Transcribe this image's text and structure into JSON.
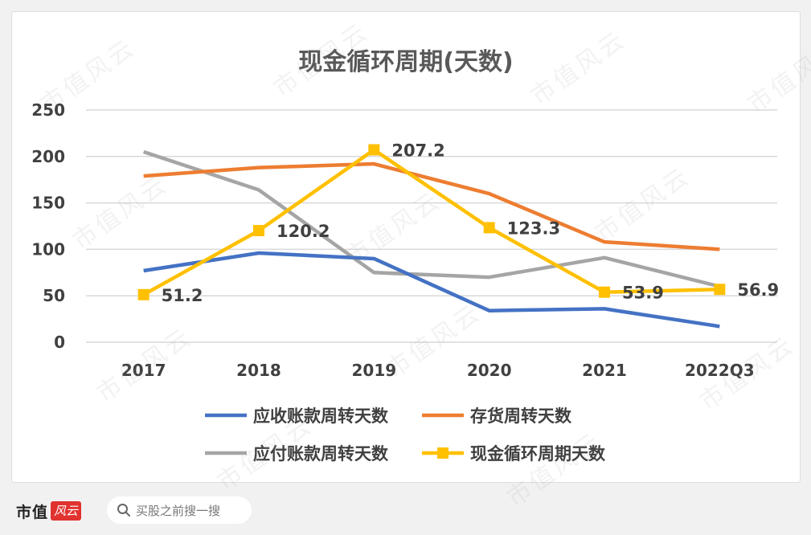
{
  "brand": {
    "name": "市值",
    "logo": "风云"
  },
  "search": {
    "placeholder": "买股之前搜一搜"
  },
  "watermark_text": "市值风云",
  "colors": {
    "receivable": "#4472c4",
    "inventory": "#ed7d31",
    "payable": "#a5a5a5",
    "cash_cycle": "#ffc000",
    "grid": "#d9d9d9",
    "text": "#404040"
  },
  "chart_data": {
    "type": "line",
    "title": "现金循环周期(天数)",
    "categories": [
      "2017",
      "2018",
      "2019",
      "2020",
      "2021",
      "2022Q3"
    ],
    "ylim": [
      0,
      250
    ],
    "yticks": [
      0,
      50,
      100,
      150,
      200,
      250
    ],
    "grid": true,
    "legend_position": "bottom",
    "series": [
      {
        "name": "应收账款周转天数",
        "color_key": "receivable",
        "values": [
          77,
          96,
          90,
          34,
          36,
          17
        ],
        "labels": false
      },
      {
        "name": "存货周转天数",
        "color_key": "inventory",
        "values": [
          179,
          188,
          192,
          160,
          108,
          100
        ],
        "labels": false
      },
      {
        "name": "应付账款周转天数",
        "color_key": "payable",
        "values": [
          205,
          164,
          75,
          70,
          91,
          60
        ],
        "labels": false
      },
      {
        "name": "现金循环周期天数",
        "color_key": "cash_cycle",
        "values": [
          51.2,
          120.2,
          207.2,
          123.3,
          53.9,
          56.9
        ],
        "labels": true,
        "markers": true
      }
    ],
    "data_labels": [
      "51.2",
      "120.2",
      "207.2",
      "123.3",
      "53.9",
      "56.9"
    ]
  }
}
